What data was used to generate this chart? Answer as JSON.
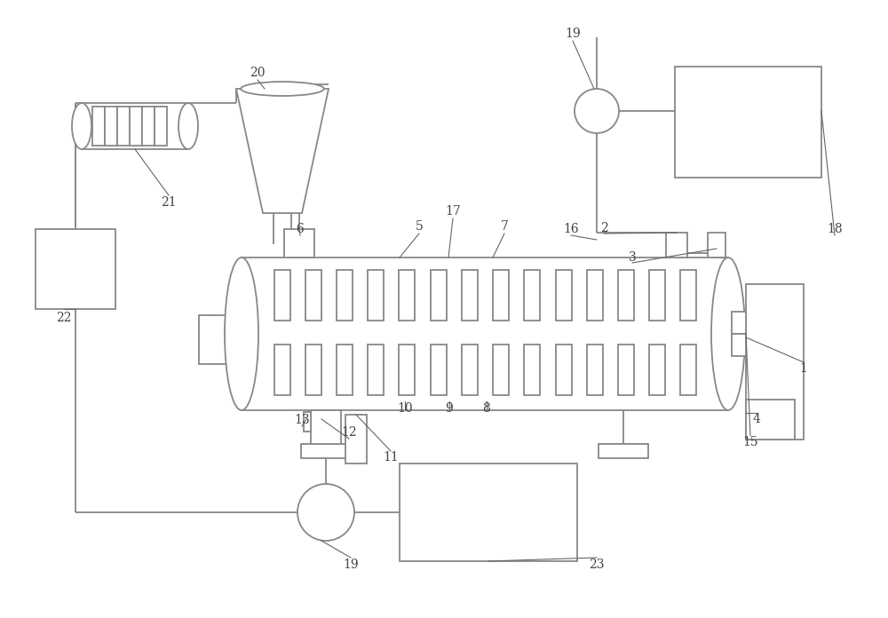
{
  "bg_color": "#ffffff",
  "lc": "#888888",
  "lw": 1.3,
  "font_color": "#444444",
  "fs": 10
}
